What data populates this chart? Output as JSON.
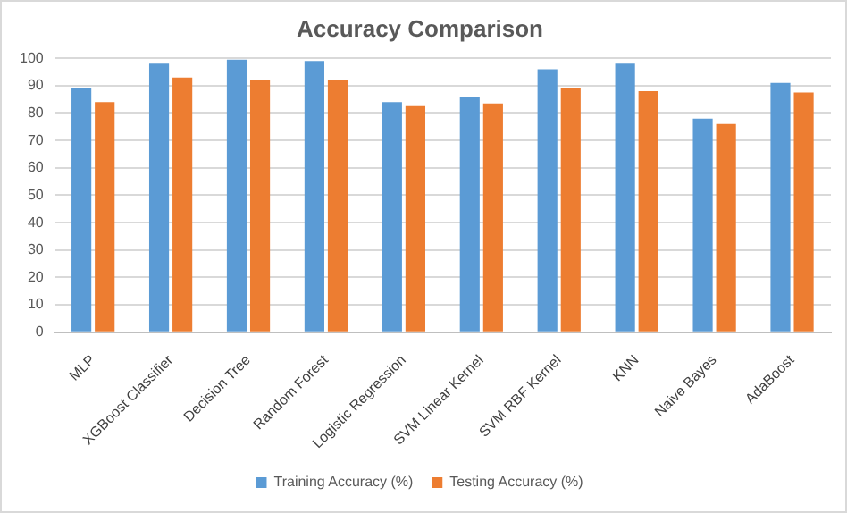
{
  "chart_data": {
    "type": "bar",
    "title": "Accuracy Comparison",
    "categories": [
      "MLP",
      "XGBoost Classifier",
      "Decision Tree",
      "Random Forest",
      "Logistic Regression",
      "SVM Linear Kernel",
      "SVM RBF Kernel",
      "KNN",
      "Naive Bayes",
      "AdaBoost"
    ],
    "series": [
      {
        "name": "Training Accuracy (%)",
        "color": "#5b9bd5",
        "values": [
          89,
          98,
          99.5,
          99,
          84,
          86,
          96,
          98,
          78,
          91
        ]
      },
      {
        "name": "Testing Accuracy (%)",
        "color": "#ed7d31",
        "values": [
          84,
          93,
          92,
          92,
          82.5,
          83.5,
          89,
          88,
          76,
          87.5
        ]
      }
    ],
    "ylim": [
      0,
      100
    ],
    "yticks": [
      0,
      10,
      20,
      30,
      40,
      50,
      60,
      70,
      80,
      90,
      100
    ],
    "grid": "y",
    "legend": "bottom"
  }
}
